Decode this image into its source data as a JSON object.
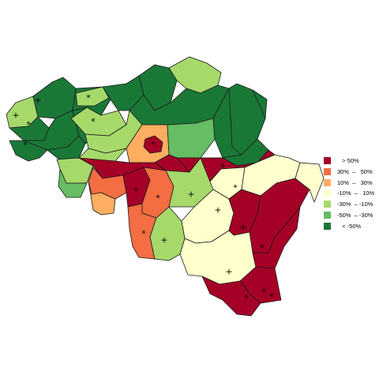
{
  "legend": {
    "items": [
      {
        "label": "   > 50%",
        "color": "#a50026"
      },
      {
        "label": "30%  –   50%",
        "color": "#f46d43"
      },
      {
        "label": "10%  –   30%",
        "color": "#fdae61"
      },
      {
        "label": "-10%  –   10%",
        "color": "#ffffcc"
      },
      {
        "label": "-30%  – -10%",
        "color": "#a6d96a"
      },
      {
        "label": "-50%  – -30%",
        "color": "#66bd63"
      },
      {
        "label": "   < -50%",
        "color": "#1a7837"
      }
    ]
  },
  "map": {
    "regions": [
      {
        "name": "region-west-coast",
        "class": 4
      },
      {
        "name": "region-bruges",
        "class": 6
      },
      {
        "name": "region-ostend-south",
        "class": 6
      },
      {
        "name": "region-diksmuide",
        "class": 6
      },
      {
        "name": "region-ypres",
        "class": 6
      },
      {
        "name": "region-kortrijk",
        "class": 6
      },
      {
        "name": "region-roeselare",
        "class": 6
      },
      {
        "name": "region-tielt",
        "class": 6
      },
      {
        "name": "region-eeklo",
        "class": 4
      },
      {
        "name": "region-ghent",
        "class": 4
      },
      {
        "name": "region-sint-niklaas",
        "class": 6
      },
      {
        "name": "region-antwerp",
        "class": 6
      },
      {
        "name": "region-turnhout",
        "class": 4
      },
      {
        "name": "region-mechelen",
        "class": 6
      },
      {
        "name": "region-dendermonde",
        "class": 4
      },
      {
        "name": "region-aalst",
        "class": 4
      },
      {
        "name": "region-oudenaarde",
        "class": 4
      },
      {
        "name": "region-halle-vilvoorde",
        "class": 2
      },
      {
        "name": "region-brussels",
        "class": 0
      },
      {
        "name": "region-leuven",
        "class": 5
      },
      {
        "name": "region-hasselt",
        "class": 6
      },
      {
        "name": "region-maaseik",
        "class": 6
      },
      {
        "name": "region-tongeren",
        "class": 6
      },
      {
        "name": "region-mouscron",
        "class": 5
      },
      {
        "name": "region-tournai-ath",
        "class": 0
      },
      {
        "name": "region-soignies",
        "class": 1
      },
      {
        "name": "region-mons",
        "class": 2
      },
      {
        "name": "region-la-louviere",
        "class": 0
      },
      {
        "name": "region-charleroi",
        "class": 1
      },
      {
        "name": "region-nivelles",
        "class": 0
      },
      {
        "name": "region-namur",
        "class": 4
      },
      {
        "name": "region-thuin",
        "class": 1
      },
      {
        "name": "region-philippeville",
        "class": 4
      },
      {
        "name": "region-waremme",
        "class": 0
      },
      {
        "name": "region-huy",
        "class": 3
      },
      {
        "name": "region-liege",
        "class": 3
      },
      {
        "name": "region-verviers",
        "class": 0
      },
      {
        "name": "region-dinant",
        "class": 3
      },
      {
        "name": "region-marche",
        "class": 3
      },
      {
        "name": "region-bastogne",
        "class": 0
      },
      {
        "name": "region-neufchateau",
        "class": 3
      },
      {
        "name": "region-arlon",
        "class": 0
      },
      {
        "name": "region-virton",
        "class": 0
      },
      {
        "name": "region-eupen",
        "class": 0
      }
    ],
    "markers": [
      {
        "name": "marker-plus-west-coast",
        "symbol": "+"
      },
      {
        "name": "marker-plus-bruges",
        "symbol": "+"
      },
      {
        "name": "marker-star-diksmuide",
        "symbol": "*"
      },
      {
        "name": "marker-star-ypres",
        "symbol": "*"
      },
      {
        "name": "marker-star-eeklo",
        "symbol": "*"
      },
      {
        "name": "marker-star-ghent",
        "symbol": "*"
      },
      {
        "name": "marker-star-brussels",
        "symbol": "*"
      },
      {
        "name": "marker-star-liege-north",
        "symbol": "*"
      },
      {
        "name": "marker-star-liege",
        "symbol": "*"
      },
      {
        "name": "marker-star-la-louviere",
        "symbol": "*"
      },
      {
        "name": "marker-star-charleroi",
        "symbol": "*"
      },
      {
        "name": "marker-star-thuin",
        "symbol": "*"
      },
      {
        "name": "marker-plus-namur",
        "symbol": "+"
      },
      {
        "name": "marker-plus-philippeville",
        "symbol": "+"
      },
      {
        "name": "marker-plus-huy",
        "symbol": "+"
      },
      {
        "name": "marker-plus-dinant",
        "symbol": "+"
      },
      {
        "name": "marker-plus-neufchateau",
        "symbol": "+"
      },
      {
        "name": "marker-star-verviers",
        "symbol": "*"
      },
      {
        "name": "marker-star-bastogne",
        "symbol": "*"
      },
      {
        "name": "marker-star-arlon",
        "symbol": "*"
      },
      {
        "name": "marker-star-virton",
        "symbol": "*"
      }
    ]
  }
}
